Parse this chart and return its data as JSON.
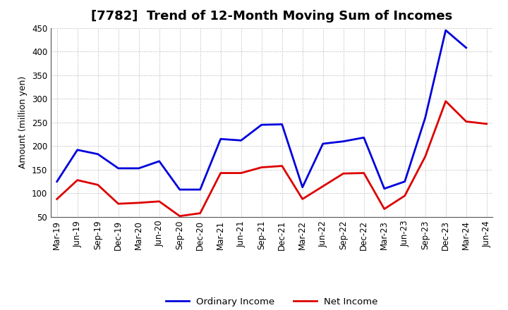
{
  "title": "[7782]  Trend of 12-Month Moving Sum of Incomes",
  "ylabel": "Amount (million yen)",
  "xlabels": [
    "Mar-19",
    "Jun-19",
    "Sep-19",
    "Dec-19",
    "Mar-20",
    "Jun-20",
    "Sep-20",
    "Dec-20",
    "Mar-21",
    "Jun-21",
    "Sep-21",
    "Dec-21",
    "Mar-22",
    "Jun-22",
    "Sep-22",
    "Dec-22",
    "Mar-23",
    "Jun-23",
    "Sep-23",
    "Dec-23",
    "Mar-24",
    "Jun-24"
  ],
  "ordinary_income": [
    125,
    192,
    183,
    153,
    153,
    168,
    108,
    108,
    215,
    212,
    245,
    246,
    113,
    205,
    210,
    218,
    110,
    125,
    260,
    445,
    408,
    null
  ],
  "net_income": [
    88,
    128,
    118,
    78,
    80,
    83,
    52,
    58,
    143,
    143,
    155,
    158,
    88,
    115,
    142,
    143,
    67,
    95,
    178,
    295,
    252,
    247
  ],
  "ordinary_color": "#0000dd",
  "net_color": "#dd0000",
  "ylim": [
    50,
    450
  ],
  "yticks": [
    50,
    100,
    150,
    200,
    250,
    300,
    350,
    400,
    450
  ],
  "bg_color": "#ffffff",
  "grid_color": "#999999",
  "title_fontsize": 13,
  "label_fontsize": 9,
  "tick_fontsize": 8.5,
  "legend_fontsize": 9.5
}
